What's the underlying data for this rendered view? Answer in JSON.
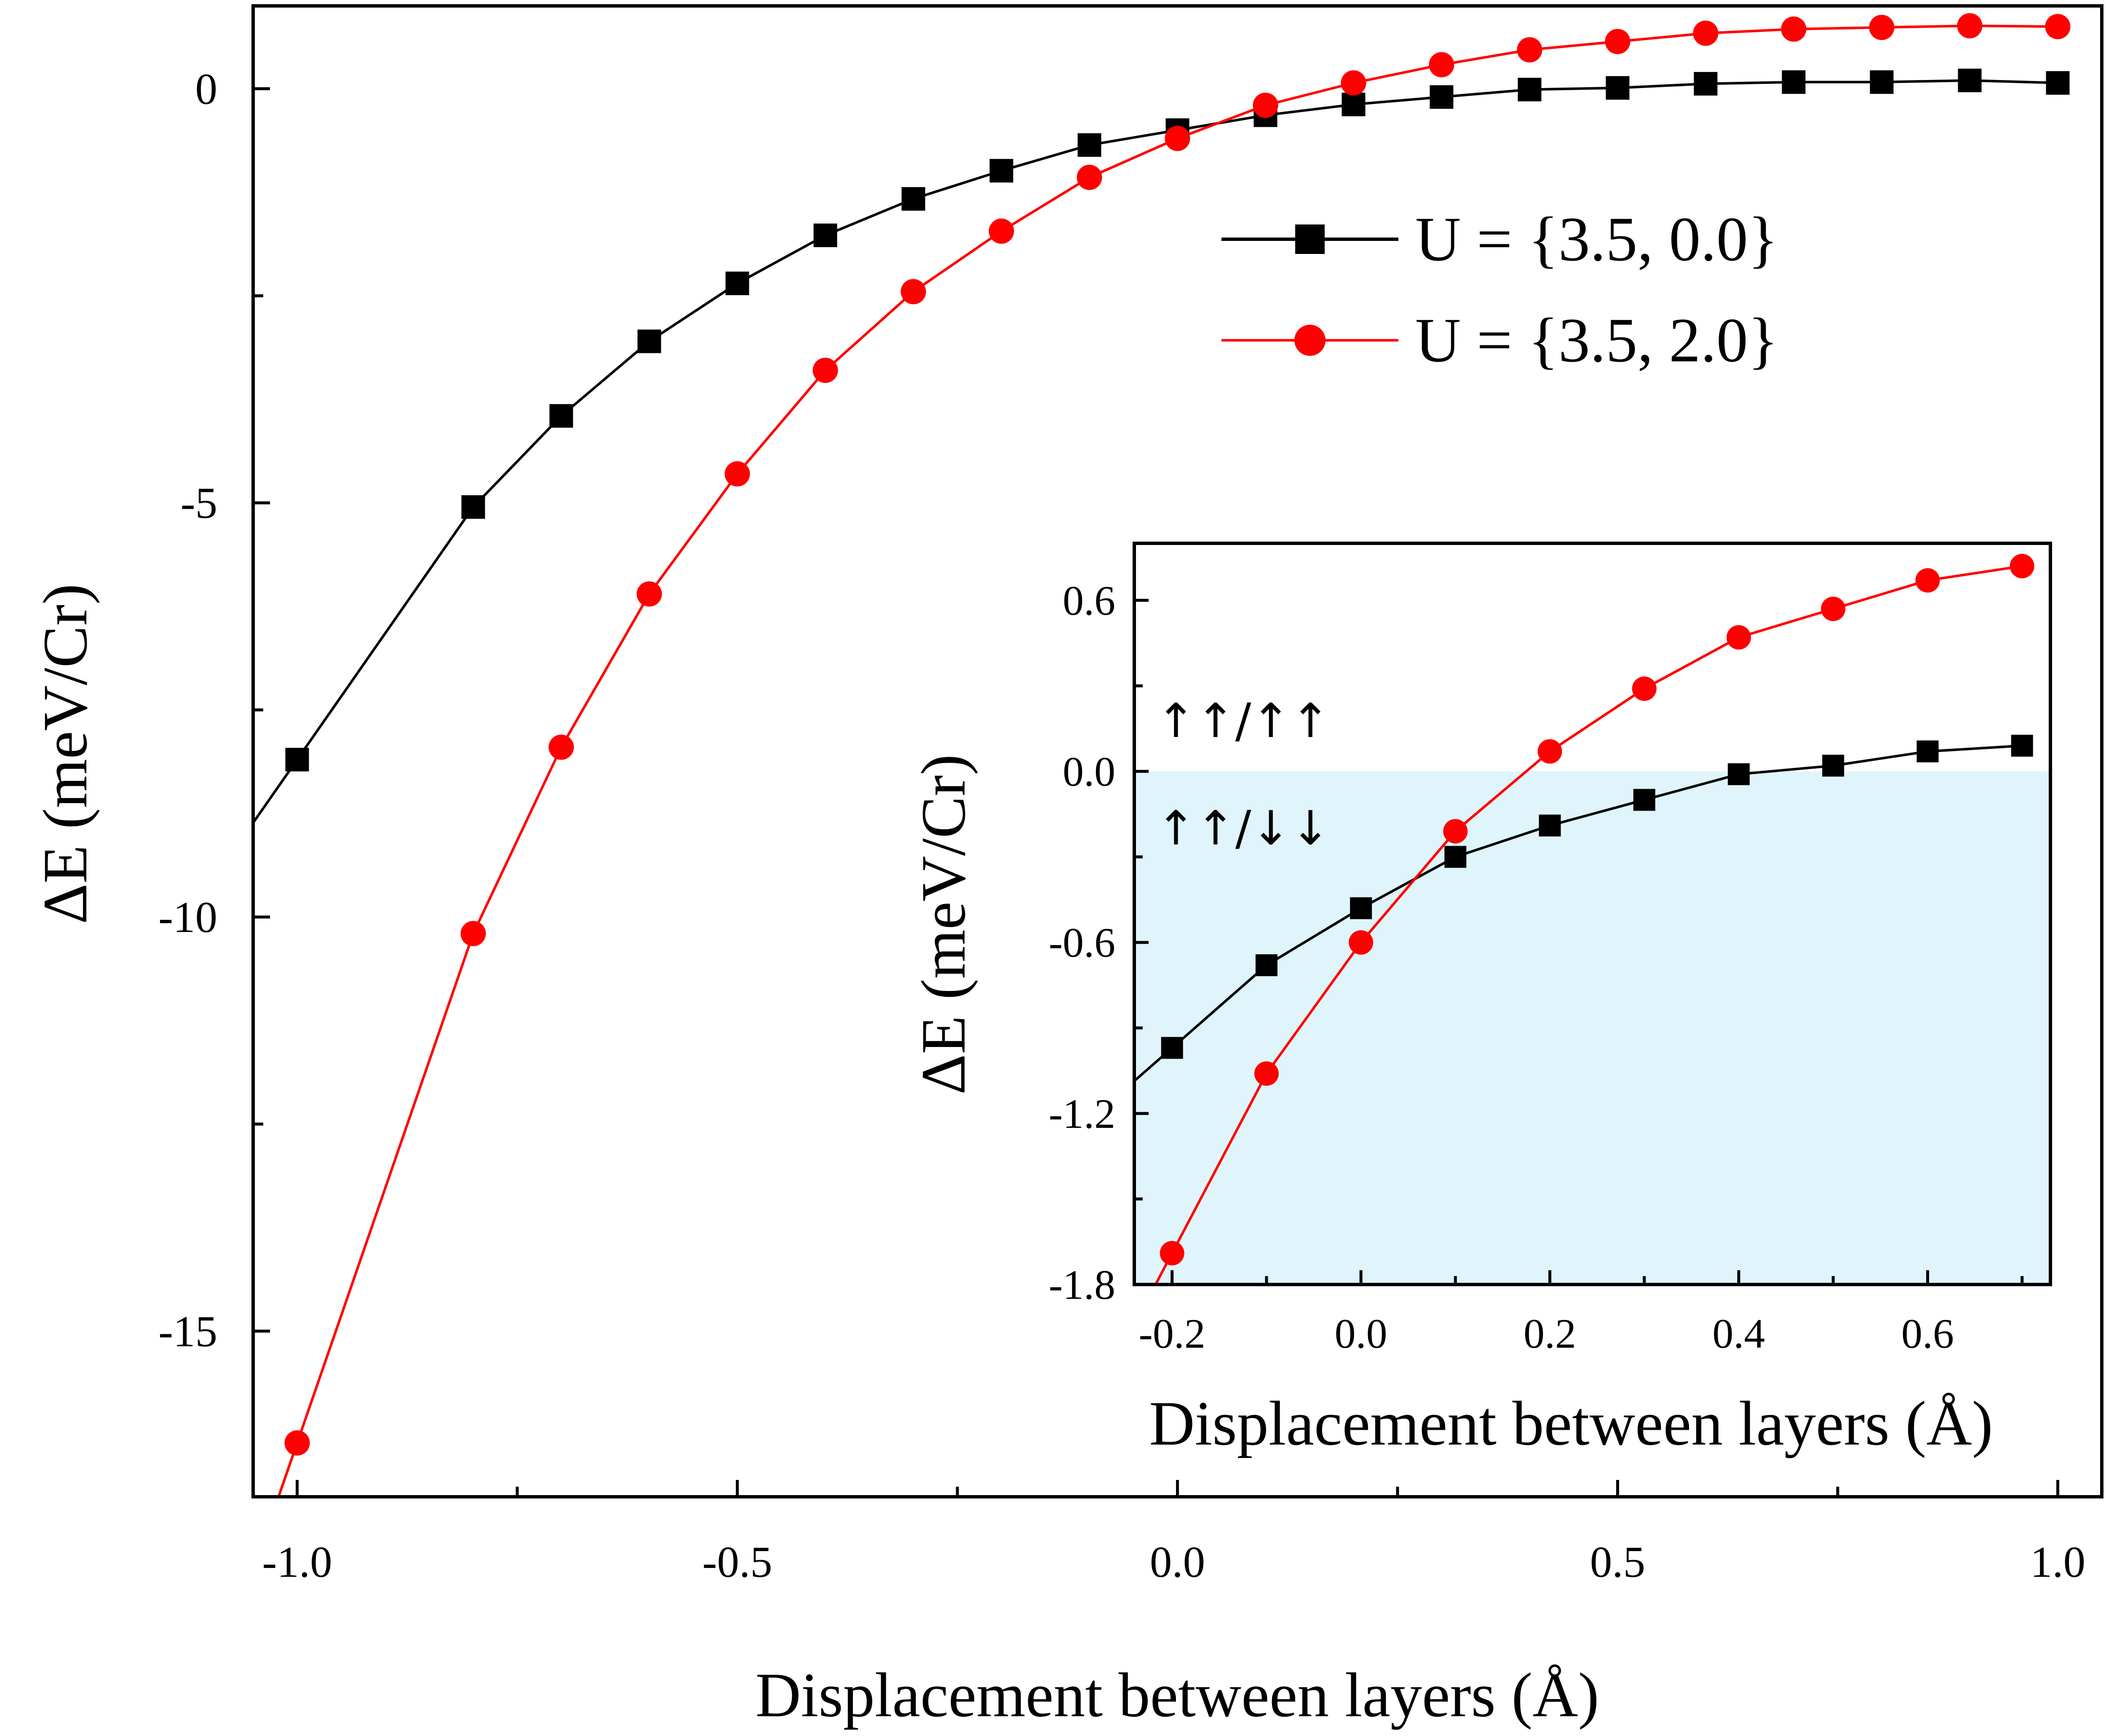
{
  "chart_data": [
    {
      "type": "line",
      "role": "main",
      "title": "",
      "xlabel": "Displacement between layers (Å)",
      "ylabel": "ΔE (meV/Cr)",
      "xlim": [
        -1.05,
        1.05
      ],
      "ylim": [
        -17,
        1
      ],
      "xticks": [
        -1.0,
        -0.5,
        0.0,
        0.5,
        1.0
      ],
      "xtick_labels": [
        "-1.0",
        "-0.5",
        "0.0",
        "0.5",
        "1.0"
      ],
      "yticks": [
        0,
        -5,
        -10,
        -15
      ],
      "ytick_labels": [
        "0",
        "-5",
        "-10",
        "-15"
      ],
      "legend": "top-right",
      "series": [
        {
          "name": "U = {3.5, 0.0}",
          "color": "#000000",
          "marker": "square",
          "x": [
            -1.0,
            -0.8,
            -0.7,
            -0.6,
            -0.5,
            -0.4,
            -0.3,
            -0.2,
            -0.1,
            0.0,
            0.1,
            0.2,
            0.3,
            0.4,
            0.5,
            0.6,
            0.7,
            0.8,
            0.9,
            1.0
          ],
          "y": [
            -8.1,
            -5.05,
            -3.95,
            -3.05,
            -2.35,
            -1.77,
            -1.33,
            -0.99,
            -0.68,
            -0.5,
            -0.32,
            -0.19,
            -0.1,
            -0.01,
            0.01,
            0.06,
            0.08,
            0.08,
            0.1,
            0.07
          ]
        },
        {
          "name": "U = {3.5, 2.0}",
          "color": "#ff0000",
          "marker": "circle",
          "x": [
            -1.0,
            -0.8,
            -0.7,
            -0.6,
            -0.5,
            -0.4,
            -0.3,
            -0.2,
            -0.1,
            0.0,
            0.1,
            0.2,
            0.3,
            0.4,
            0.5,
            0.6,
            0.7,
            0.8,
            0.9,
            1.0
          ],
          "y": [
            -16.35,
            -10.2,
            -7.95,
            -6.1,
            -4.65,
            -3.4,
            -2.45,
            -1.72,
            -1.07,
            -0.6,
            -0.2,
            0.07,
            0.29,
            0.47,
            0.57,
            0.67,
            0.72,
            0.74,
            0.76,
            0.75
          ]
        }
      ]
    },
    {
      "type": "line",
      "role": "inset",
      "title": "",
      "xlabel": "Displacement between layers (Å)",
      "ylabel": "ΔE (meV/Cr)",
      "xlim": [
        -0.24,
        0.73
      ],
      "ylim": [
        -1.8,
        0.8
      ],
      "xticks": [
        -0.2,
        0.0,
        0.2,
        0.4,
        0.6
      ],
      "xtick_labels": [
        "-0.2",
        "0.0",
        "0.2",
        "0.4",
        "0.6"
      ],
      "yticks": [
        0.6,
        0.0,
        -0.6,
        -1.2,
        -1.8
      ],
      "ytick_labels": [
        "0.6",
        "0.0",
        "-0.6",
        "-1.2",
        "-1.8"
      ],
      "shaded_region": {
        "y_from": -1.8,
        "y_to": 0.0,
        "color": "#dff5fb"
      },
      "annotations": [
        {
          "text": "↑↑/↑↑",
          "x": -0.2,
          "y": 0.18
        },
        {
          "text": "↑↑/↓↓",
          "x": -0.2,
          "y": -0.18
        }
      ],
      "series": [
        {
          "name": "U = {3.5, 0.0}",
          "color": "#000000",
          "marker": "square",
          "x": [
            -0.2,
            -0.1,
            0.0,
            0.1,
            0.2,
            0.3,
            0.4,
            0.5,
            0.6,
            0.7
          ],
          "y": [
            -0.97,
            -0.68,
            -0.48,
            -0.3,
            -0.19,
            -0.1,
            -0.01,
            0.02,
            0.07,
            0.09
          ]
        },
        {
          "name": "U = {3.5, 2.0}",
          "color": "#ff0000",
          "marker": "circle",
          "x": [
            -0.2,
            -0.1,
            0.0,
            0.1,
            0.2,
            0.3,
            0.4,
            0.5,
            0.6,
            0.7
          ],
          "y": [
            -1.69,
            -1.06,
            -0.6,
            -0.21,
            0.07,
            0.29,
            0.47,
            0.57,
            0.67,
            0.72
          ]
        }
      ]
    }
  ]
}
